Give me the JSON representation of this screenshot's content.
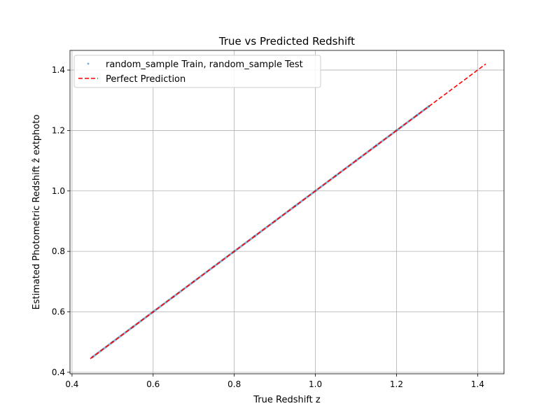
{
  "chart_data": {
    "type": "scatter",
    "title": "True vs Predicted Redshift",
    "xlabel": "True Redshift z",
    "ylabel": "Estimated Photometric Redshift ẑ extphoto",
    "xlim": [
      0.395,
      1.465
    ],
    "ylim": [
      0.395,
      1.465
    ],
    "xticks": [
      0.4,
      0.6,
      0.8,
      1.0,
      1.2,
      1.4
    ],
    "yticks": [
      0.4,
      0.6,
      0.8,
      1.0,
      1.2,
      1.4
    ],
    "xtick_labels": [
      "0.4",
      "0.6",
      "0.8",
      "1.0",
      "1.2",
      "1.4"
    ],
    "ytick_labels": [
      "0.4",
      "0.6",
      "0.8",
      "1.0",
      "1.2",
      "1.4"
    ],
    "grid": true,
    "legend_position": "top-left",
    "series": [
      {
        "name": "random_sample Train, random_sample Test",
        "kind": "scatter",
        "color": "#1f77b4",
        "x": [
          0.45,
          0.5,
          0.55,
          0.6,
          0.65,
          0.7,
          0.75,
          0.8,
          0.85,
          0.9,
          0.95,
          1.0,
          1.05,
          1.1,
          1.15,
          1.2,
          1.25,
          1.28
        ],
        "y": [
          0.45,
          0.5,
          0.55,
          0.6,
          0.65,
          0.7,
          0.75,
          0.8,
          0.85,
          0.9,
          0.95,
          1.0,
          1.05,
          1.1,
          1.15,
          1.2,
          1.25,
          1.28
        ]
      },
      {
        "name": "Perfect Prediction",
        "kind": "line",
        "style": "dashed",
        "color": "#ff0000",
        "x": [
          0.445,
          1.42
        ],
        "y": [
          0.445,
          1.42
        ]
      }
    ]
  }
}
